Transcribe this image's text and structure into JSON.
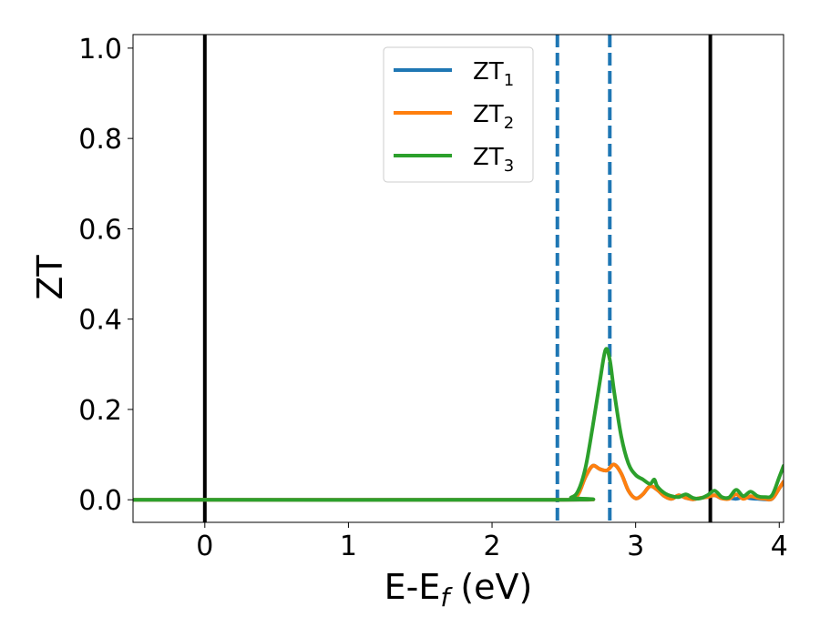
{
  "chart_data": {
    "type": "line",
    "title": "",
    "xlabel": {
      "main": "E-E",
      "sub": "f",
      "suffix": " (eV)"
    },
    "ylabel": "ZT",
    "xlim": [
      -0.5,
      4.03
    ],
    "ylim": [
      -0.05,
      1.03
    ],
    "xticks": [
      0,
      1,
      2,
      3,
      4
    ],
    "xtick_labels": [
      "0",
      "1",
      "2",
      "3",
      "4"
    ],
    "yticks": [
      0.0,
      0.2,
      0.4,
      0.6,
      0.8,
      1.0
    ],
    "ytick_labels": [
      "0.0",
      "0.2",
      "0.4",
      "0.6",
      "0.8",
      "1.0"
    ],
    "grid": false,
    "legend_position": "top-center",
    "vertical_lines": [
      {
        "x": 0.0,
        "style": "solid",
        "color": "#000000"
      },
      {
        "x": 2.455,
        "style": "dashed",
        "color": "#1f77b4"
      },
      {
        "x": 2.82,
        "style": "dashed",
        "color": "#1f77b4"
      },
      {
        "x": 3.52,
        "style": "solid",
        "color": "#000000"
      }
    ],
    "series": [
      {
        "name": "ZT",
        "sub": "1",
        "color": "#1f77b4",
        "x": [
          -0.5,
          2.46,
          2.55,
          2.6,
          2.65,
          2.7,
          2.75,
          2.8,
          2.85,
          2.9,
          2.95,
          3.0,
          3.05,
          3.1,
          3.15,
          3.2,
          3.25,
          3.3,
          3.35,
          3.4,
          3.45,
          3.5,
          3.55,
          3.6,
          3.65,
          3.7,
          3.75,
          3.8,
          3.85,
          3.9,
          3.95,
          4.0,
          4.03
        ],
        "y": [
          0.0,
          0.0,
          0.003,
          0.012,
          0.05,
          0.075,
          0.068,
          0.065,
          0.078,
          0.058,
          0.02,
          0.003,
          0.012,
          0.03,
          0.022,
          0.008,
          0.002,
          0.01,
          0.004,
          0.001,
          0.004,
          0.006,
          0.01,
          0.003,
          0.004,
          0.002,
          0.006,
          0.003,
          0.002,
          0.001,
          0.002,
          0.025,
          0.04
        ]
      },
      {
        "name": "ZT",
        "sub": "2",
        "color": "#ff7f0e",
        "x": [
          -0.5,
          2.46,
          2.55,
          2.6,
          2.65,
          2.7,
          2.75,
          2.8,
          2.85,
          2.9,
          2.95,
          3.0,
          3.05,
          3.1,
          3.15,
          3.2,
          3.25,
          3.3,
          3.35,
          3.4,
          3.45,
          3.5,
          3.55,
          3.6,
          3.65,
          3.7,
          3.75,
          3.8,
          3.85,
          3.9,
          3.95,
          4.0,
          4.03
        ],
        "y": [
          0.0,
          0.0,
          0.003,
          0.012,
          0.05,
          0.075,
          0.068,
          0.065,
          0.078,
          0.058,
          0.02,
          0.003,
          0.012,
          0.03,
          0.022,
          0.008,
          0.002,
          0.01,
          0.004,
          0.001,
          0.004,
          0.006,
          0.01,
          0.003,
          0.002,
          0.012,
          0.002,
          0.008,
          0.004,
          0.002,
          0.002,
          0.025,
          0.04
        ]
      },
      {
        "name": "ZT",
        "sub": "3",
        "color": "#2ca02c",
        "x": [
          -0.5,
          2.46,
          2.55,
          2.6,
          2.65,
          2.7,
          2.75,
          2.79,
          2.82,
          2.85,
          2.9,
          2.95,
          3.0,
          3.05,
          3.1,
          3.13,
          3.15,
          3.2,
          3.25,
          3.3,
          3.35,
          3.4,
          3.45,
          3.5,
          3.55,
          3.6,
          3.65,
          3.7,
          3.75,
          3.8,
          3.85,
          3.9,
          3.95,
          4.0,
          4.03
        ],
        "y": [
          0.0,
          0.0,
          0.005,
          0.02,
          0.07,
          0.16,
          0.26,
          0.332,
          0.31,
          0.24,
          0.14,
          0.08,
          0.055,
          0.045,
          0.035,
          0.045,
          0.03,
          0.015,
          0.008,
          0.006,
          0.012,
          0.004,
          0.003,
          0.01,
          0.02,
          0.006,
          0.005,
          0.022,
          0.008,
          0.018,
          0.008,
          0.006,
          0.01,
          0.05,
          0.075
        ]
      }
    ]
  }
}
